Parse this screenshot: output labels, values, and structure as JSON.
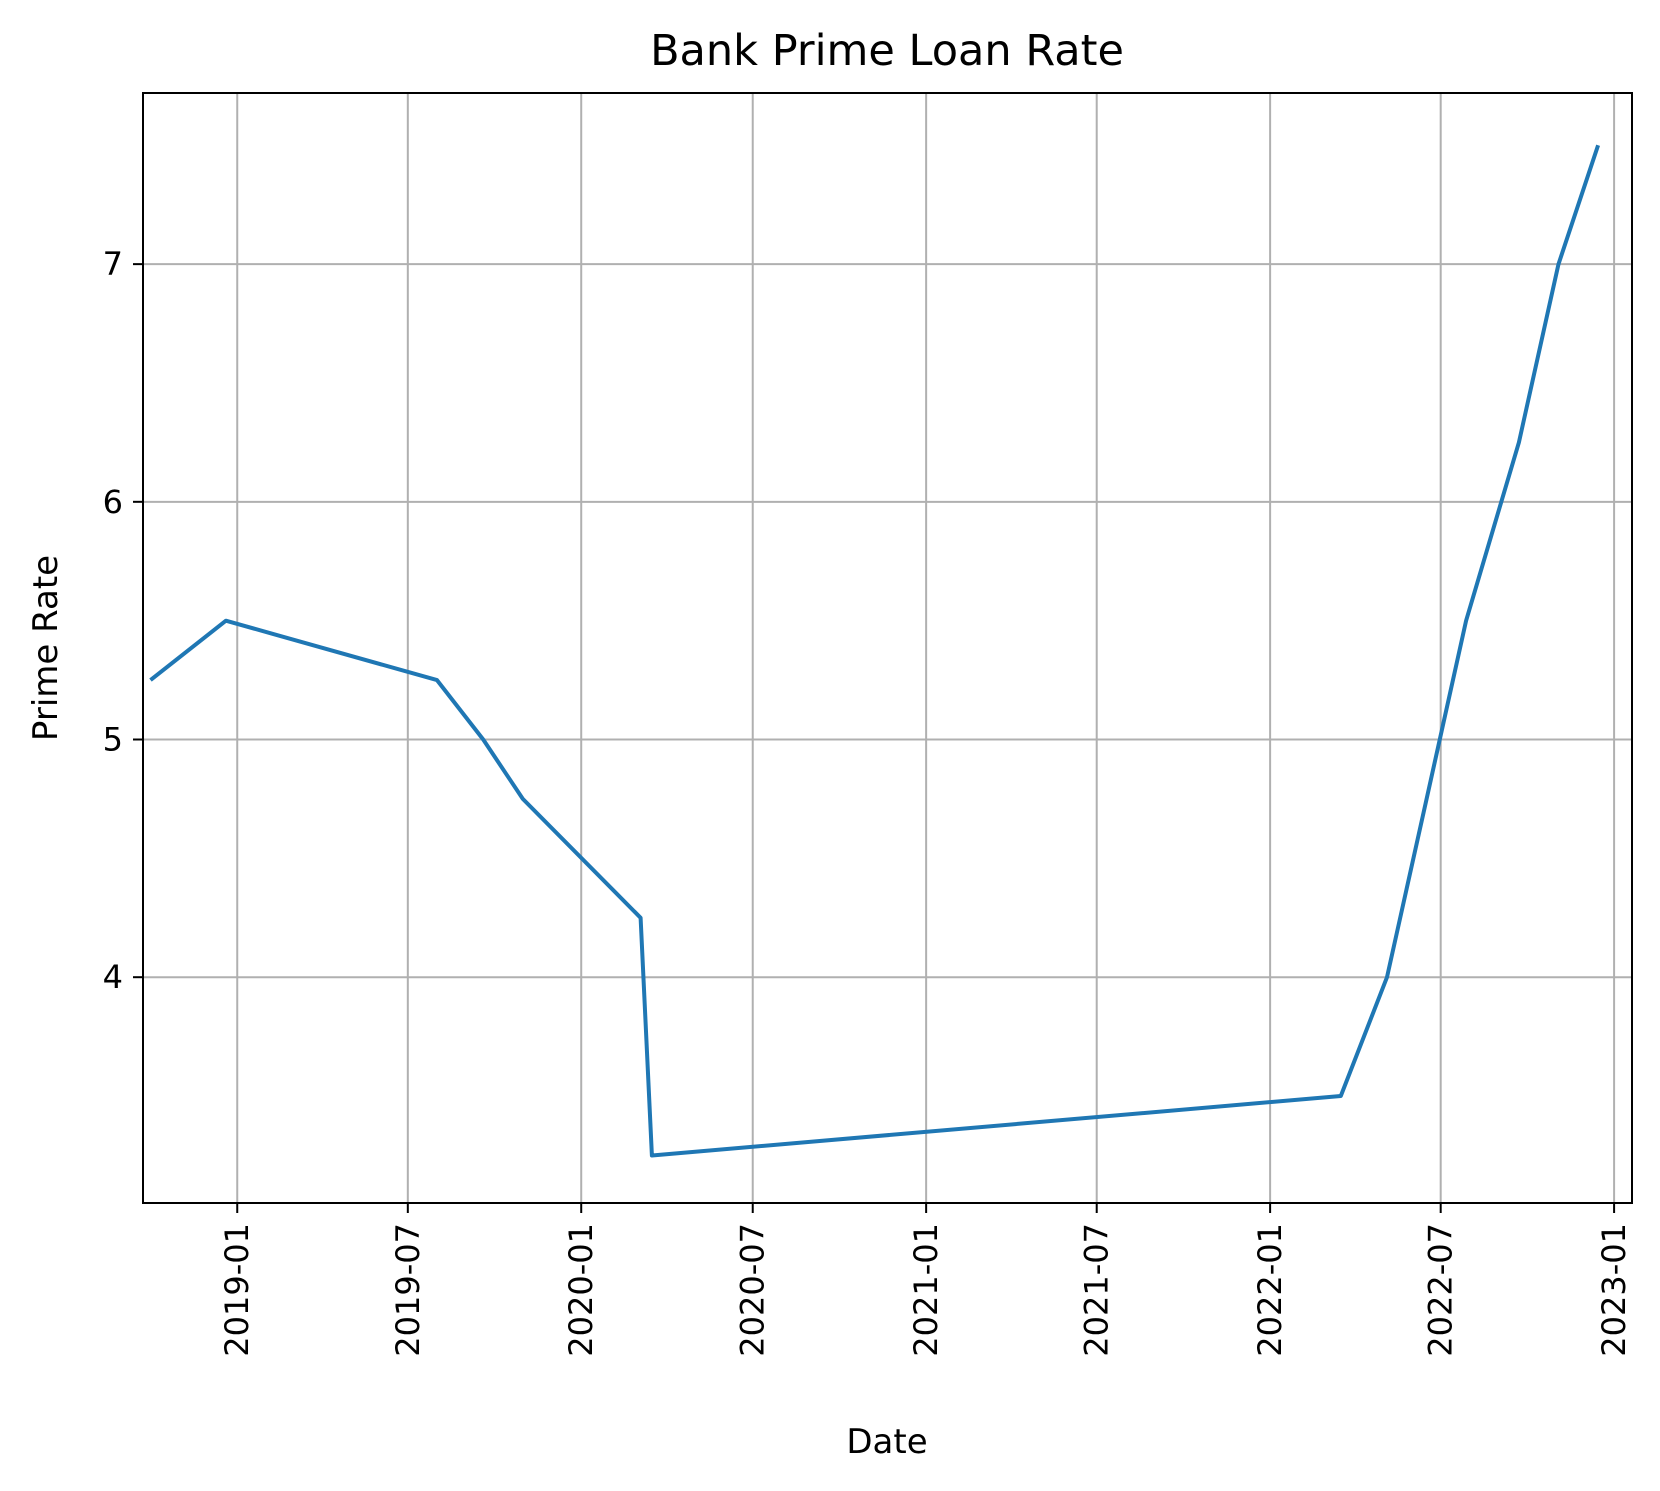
{
  "chart_data": {
    "type": "line",
    "title": "Bank Prime Loan Rate",
    "xlabel": "Date",
    "ylabel": "Prime Rate",
    "grid": true,
    "line_color": "#1f77b4",
    "grid_color": "#b0b0b0",
    "xlim": [
      "2018-09-23",
      "2023-01-20"
    ],
    "ylim": [
      3.05,
      7.72
    ],
    "x_ticks": [
      "2019-01",
      "2019-07",
      "2020-01",
      "2020-07",
      "2021-01",
      "2021-07",
      "2022-01",
      "2022-07",
      "2023-01"
    ],
    "y_ticks": [
      "4",
      "5",
      "6",
      "7"
    ],
    "series": [
      {
        "x": [
          "2018-10-01",
          "2018-12-20",
          "2019-08-01",
          "2019-09-19",
          "2019-10-31",
          "2020-03-04",
          "2020-03-16",
          "2022-03-17",
          "2022-05-05",
          "2022-06-16",
          "2022-07-28",
          "2022-09-22",
          "2022-11-03",
          "2022-12-15"
        ],
        "y": [
          5.25,
          5.5,
          5.25,
          5.0,
          4.75,
          4.25,
          3.25,
          3.5,
          4.0,
          4.75,
          5.5,
          6.25,
          7.0,
          7.5
        ]
      }
    ]
  }
}
